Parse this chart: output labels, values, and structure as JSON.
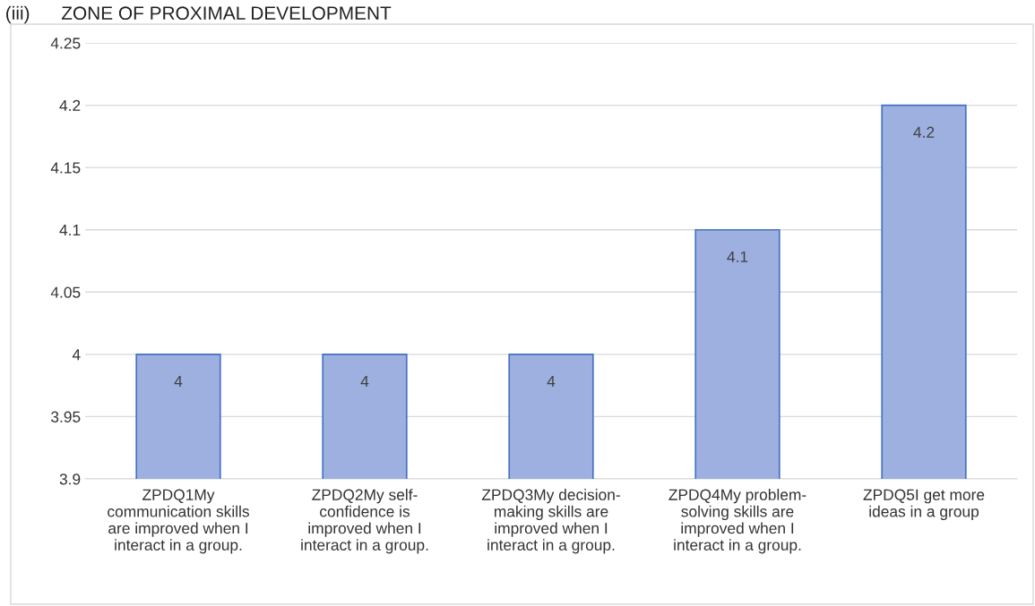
{
  "chart_data": {
    "type": "bar",
    "title": "(iii)      ZONE OF PROXIMAL DEVELOPMENT",
    "categories": [
      "ZPDQ1My communication skills are improved when I interact in a group.",
      "ZPDQ2My self-confidence is improved when I interact in a group.",
      "ZPDQ3My decision-making skills are improved when I interact in a group.",
      "ZPDQ4My problem-solving skills are improved when I interact in a group.",
      "ZPDQ5I get more ideas in a group"
    ],
    "values": [
      4,
      4,
      4,
      4.1,
      4.2
    ],
    "color": "#9db0e0",
    "ylim": [
      3.9,
      4.25
    ],
    "yticks": [
      3.9,
      3.95,
      4,
      4.05,
      4.1,
      4.15,
      4.2,
      4.25
    ],
    "grid": "y",
    "data_labels": true
  }
}
